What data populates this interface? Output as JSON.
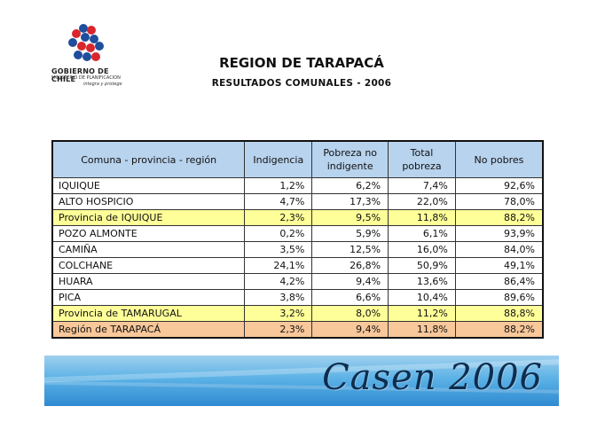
{
  "logo": {
    "line1": "GOBIERNO DE CHILE",
    "line2": "MINISTERIO DE PLANIFICACION",
    "line3": "integra y protege"
  },
  "header": {
    "title": "REGION DE TARAPACÁ",
    "subtitle": "RESULTADOS COMUNALES - 2006"
  },
  "table": {
    "columns": [
      "Comuna - provincia - región",
      "Indigencia",
      "Pobreza no indigente",
      "Total pobreza",
      "No pobres"
    ],
    "rows": [
      {
        "name": "IQUIQUE",
        "indigencia": "1,2%",
        "pobreza_no_indigente": "6,2%",
        "total_pobreza": "7,4%",
        "no_pobres": "92,6%"
      },
      {
        "name": "ALTO HOSPICIO",
        "indigencia": "4,7%",
        "pobreza_no_indigente": "17,3%",
        "total_pobreza": "22,0%",
        "no_pobres": "78,0%"
      },
      {
        "name": "Provincia de IQUIQUE",
        "indigencia": "2,3%",
        "pobreza_no_indigente": "9,5%",
        "total_pobreza": "11,8%",
        "no_pobres": "88,2%"
      },
      {
        "name": "POZO ALMONTE",
        "indigencia": "0,2%",
        "pobreza_no_indigente": "5,9%",
        "total_pobreza": "6,1%",
        "no_pobres": "93,9%"
      },
      {
        "name": "CAMIÑA",
        "indigencia": "3,5%",
        "pobreza_no_indigente": "12,5%",
        "total_pobreza": "16,0%",
        "no_pobres": "84,0%"
      },
      {
        "name": "COLCHANE",
        "indigencia": "24,1%",
        "pobreza_no_indigente": "26,8%",
        "total_pobreza": "50,9%",
        "no_pobres": "49,1%"
      },
      {
        "name": "HUARA",
        "indigencia": "4,2%",
        "pobreza_no_indigente": "9,4%",
        "total_pobreza": "13,6%",
        "no_pobres": "86,4%"
      },
      {
        "name": "PICA",
        "indigencia": "3,8%",
        "pobreza_no_indigente": "6,6%",
        "total_pobreza": "10,4%",
        "no_pobres": "89,6%"
      },
      {
        "name": "Provincia de TAMARUGAL",
        "indigencia": "3,2%",
        "pobreza_no_indigente": "8,0%",
        "total_pobreza": "11,2%",
        "no_pobres": "88,8%"
      },
      {
        "name": "Región de TARAPACÁ",
        "indigencia": "2,3%",
        "pobreza_no_indigente": "9,4%",
        "total_pobreza": "11,8%",
        "no_pobres": "88,2%"
      }
    ]
  },
  "banner": {
    "text": "Casen 2006"
  },
  "colors": {
    "header_bg": "#b8d3ee",
    "province_row": "#ffff99",
    "region_row": "#f8c79a",
    "banner_blue": "#3b95d6"
  }
}
